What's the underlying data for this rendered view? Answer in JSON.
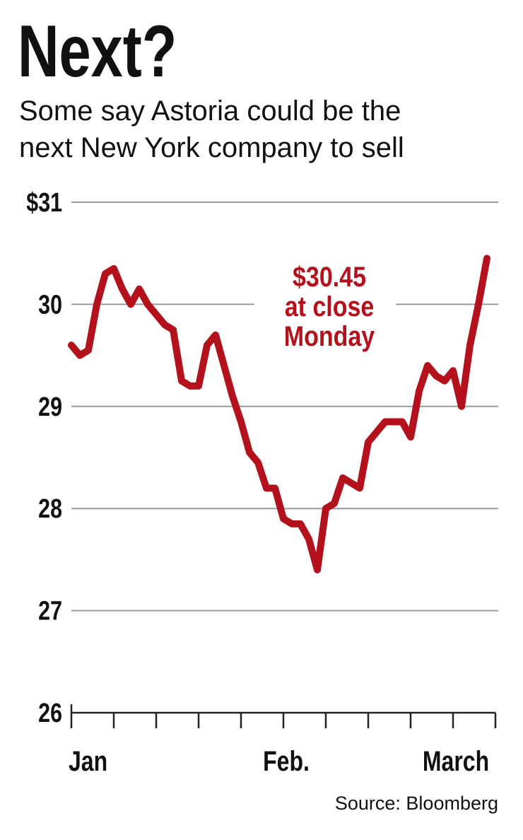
{
  "chart_data": {
    "type": "line",
    "title": "Next?",
    "subtitle": [
      "Some say Astoria could be the",
      "next New York company to sell"
    ],
    "annotation": [
      "$30.45",
      "at close",
      "Monday"
    ],
    "source": "Source: Bloomberg",
    "categories": [
      "Jan",
      null,
      null,
      null,
      null,
      null,
      null,
      null,
      null,
      null,
      null,
      null,
      null,
      null,
      null,
      null,
      null,
      null,
      null,
      null,
      null,
      null,
      null,
      null,
      null,
      "Feb.",
      null,
      null,
      null,
      null,
      null,
      null,
      null,
      null,
      null,
      null,
      null,
      null,
      null,
      null,
      null,
      null,
      null,
      null,
      null,
      "March",
      null,
      null,
      null,
      null,
      null
    ],
    "series": [
      {
        "color": "#b3121d",
        "values": [
          29.6,
          29.5,
          29.55,
          30.0,
          30.3,
          30.35,
          30.15,
          30.0,
          30.15,
          30.0,
          29.9,
          29.8,
          29.75,
          29.25,
          29.2,
          29.2,
          29.6,
          29.7,
          29.4,
          29.1,
          28.85,
          28.55,
          28.45,
          28.2,
          28.2,
          27.9,
          27.85,
          27.85,
          27.7,
          27.4,
          28.0,
          28.05,
          28.3,
          28.25,
          28.2,
          28.65,
          28.75,
          28.85,
          28.85,
          28.85,
          28.7,
          29.15,
          29.4,
          29.3,
          29.25,
          29.35,
          29.0,
          29.6,
          30.0,
          30.45,
          null
        ]
      }
    ],
    "ylim": [
      26,
      31
    ],
    "yticks": [
      26,
      27,
      28,
      29,
      30,
      {
        "value": 31,
        "label": "$31"
      }
    ],
    "grid": true
  }
}
